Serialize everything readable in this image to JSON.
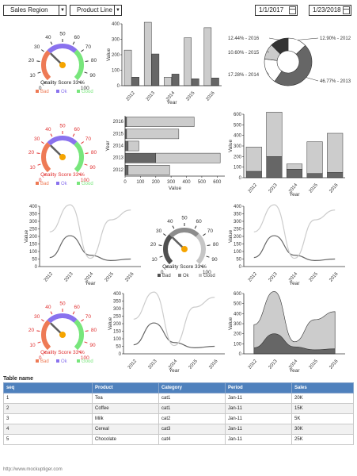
{
  "controls": {
    "sales_region": "Sales Region",
    "product_line": "Product Line",
    "date_from": "1/1/2017",
    "date_to": "1/23/2018"
  },
  "gauge": {
    "ticks": [
      "0",
      "10",
      "20",
      "30",
      "40",
      "50",
      "60",
      "70",
      "80",
      "90",
      "100"
    ],
    "value": 33,
    "caption": "Quality Score 33 %",
    "legend": [
      "Bad",
      "Ok",
      "Good"
    ],
    "colors": {
      "bad": "#ee7a55",
      "ok": "#8a72ee",
      "good": "#78e67c",
      "needle": "#606060",
      "hub": "#f5a400",
      "tick_red": "#e03030",
      "dark": "#505050",
      "mid": "#8c8c8c",
      "light": "#c6c6c6"
    }
  },
  "series_colors": {
    "dark": "#666666",
    "light": "#cccccc"
  },
  "chart_data": [
    {
      "id": "bar-vertical",
      "type": "bar",
      "categories": [
        "2012",
        "2013",
        "2014",
        "2015",
        "2016"
      ],
      "series": [
        {
          "values": [
            230,
            410,
            55,
            310,
            375
          ]
        },
        {
          "values": [
            55,
            205,
            75,
            45,
            50
          ]
        }
      ],
      "ylabel": "Value",
      "xlabel": "Year",
      "ylim": [
        0,
        400
      ],
      "yticks": [
        "0",
        "100",
        "200",
        "300",
        "400"
      ]
    },
    {
      "id": "pie",
      "type": "pie",
      "labels": [
        "12.90% - 2012",
        "46.77% - 2013",
        "17.28% - 2014",
        "10.60% - 2015",
        "12.44% - 2016"
      ],
      "values": [
        12.9,
        46.77,
        17.28,
        10.6,
        12.44
      ]
    },
    {
      "id": "bar-horizontal",
      "type": "bar",
      "orientation": "horizontal",
      "categories": [
        "2016",
        "2015",
        "2014",
        "2013",
        "2012"
      ],
      "series": [
        {
          "values": [
            10,
            10,
            20,
            200,
            20
          ]
        },
        {
          "values": [
            440,
            340,
            70,
            420,
            270
          ]
        }
      ],
      "ylabel": "Year",
      "xlabel": "Value",
      "xlim": [
        0,
        650
      ],
      "xticks": [
        "0",
        "100",
        "200",
        "300",
        "400",
        "500",
        "600"
      ]
    },
    {
      "id": "bar-stacked",
      "type": "bar",
      "stacked": true,
      "categories": [
        "2012",
        "2013",
        "2014",
        "2015",
        "2016"
      ],
      "series": [
        {
          "values": [
            60,
            200,
            80,
            40,
            50
          ]
        },
        {
          "values": [
            230,
            420,
            50,
            300,
            370
          ]
        }
      ],
      "ylabel": "Value",
      "xlabel": "Year",
      "ylim": [
        0,
        600
      ],
      "yticks": [
        "0",
        "100",
        "200",
        "300",
        "400",
        "500",
        "600"
      ]
    },
    {
      "id": "line-a",
      "type": "line",
      "x": [
        "2012",
        "2013",
        "2014",
        "2015",
        "2016"
      ],
      "series": [
        {
          "values": [
            60,
            205,
            75,
            40,
            50
          ]
        },
        {
          "values": [
            230,
            410,
            55,
            310,
            375
          ]
        }
      ],
      "ylabel": "Value",
      "xlabel": "Year",
      "ylim": [
        0,
        400
      ],
      "yticks": [
        "0",
        "50",
        "100",
        "150",
        "200",
        "250",
        "300",
        "350",
        "400"
      ]
    },
    {
      "id": "line-b",
      "type": "line",
      "x": [
        "2012",
        "2013",
        "2014",
        "2015",
        "2016"
      ],
      "series": [
        {
          "values": [
            60,
            205,
            75,
            40,
            50
          ]
        },
        {
          "values": [
            230,
            410,
            55,
            310,
            375
          ]
        }
      ],
      "ylabel": "Value",
      "xlabel": "Year",
      "ylim": [
        0,
        400
      ],
      "yticks": [
        "0",
        "50",
        "100",
        "150",
        "200",
        "250",
        "300",
        "350",
        "400"
      ]
    },
    {
      "id": "line-c",
      "type": "line",
      "x": [
        "2012",
        "2013",
        "2014",
        "2015",
        "2016"
      ],
      "series": [
        {
          "values": [
            60,
            205,
            75,
            40,
            50
          ]
        },
        {
          "values": [
            230,
            410,
            55,
            310,
            375
          ]
        }
      ],
      "ylabel": "Value",
      "xlabel": "Year",
      "ylim": [
        0,
        400
      ],
      "yticks": [
        "0",
        "50",
        "100",
        "150",
        "200",
        "250",
        "300",
        "350",
        "400"
      ]
    },
    {
      "id": "area-stacked",
      "type": "area",
      "stacked": true,
      "x": [
        "2012",
        "2013",
        "2014",
        "2015",
        "2016"
      ],
      "series": [
        {
          "values": [
            60,
            200,
            70,
            40,
            50
          ]
        },
        {
          "values": [
            230,
            420,
            50,
            300,
            370
          ]
        }
      ],
      "ylabel": "Value",
      "xlabel": "Year",
      "ylim": [
        0,
        600
      ],
      "yticks": [
        "0",
        "100",
        "200",
        "300",
        "400",
        "500",
        "600"
      ]
    }
  ],
  "table": {
    "title": "Table name",
    "headers": [
      "seq",
      "Product",
      "Category",
      "Period",
      "Sales"
    ],
    "rows": [
      [
        "1",
        "Tea",
        "cat1",
        "Jan-11",
        "20K"
      ],
      [
        "2",
        "Coffee",
        "cat1",
        "Jan-11",
        "15K"
      ],
      [
        "3",
        "Milk",
        "cat2",
        "Jan-11",
        "5K"
      ],
      [
        "4",
        "Cereal",
        "cat3",
        "Jan-11",
        "30K"
      ],
      [
        "5",
        "Chocolate",
        "cat4",
        "Jan-11",
        "25K"
      ]
    ]
  },
  "footer": "http://www.mockuptiger.com"
}
